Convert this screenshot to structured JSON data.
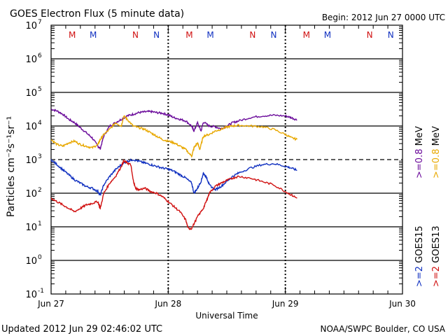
{
  "chart_data": {
    "type": "line",
    "title": "GOES Electron Flux (5 minute data)",
    "begin_label": "Begin: 2012 Jun 27 0000 UTC",
    "ylabel": "Particles cm⁻²s⁻¹sr⁻¹",
    "xlabel": "Universal Time",
    "updated": "Updated 2012 Jun 29 02:46:02 UTC",
    "source": "NOAA/SWPC Boulder, CO USA",
    "ylim_log10": [
      -1,
      7
    ],
    "y_ticks": [
      {
        "exp": 7,
        "label": "10",
        "sup": "7"
      },
      {
        "exp": 6,
        "label": "10",
        "sup": "6"
      },
      {
        "exp": 5,
        "label": "10",
        "sup": "5"
      },
      {
        "exp": 4,
        "label": "10",
        "sup": "4"
      },
      {
        "exp": 3,
        "label": "10",
        "sup": "3"
      },
      {
        "exp": 2,
        "label": "10",
        "sup": "2"
      },
      {
        "exp": 1,
        "label": "10",
        "sup": "1"
      },
      {
        "exp": 0,
        "label": "10",
        "sup": "0"
      },
      {
        "exp": -1,
        "label": "10",
        "sup": "-1"
      }
    ],
    "xlim_days": [
      0,
      3
    ],
    "x_ticks": [
      {
        "day": 0,
        "label": "Jun 27"
      },
      {
        "day": 1,
        "label": "Jun 28"
      },
      {
        "day": 2,
        "label": "Jun 29"
      },
      {
        "day": 3,
        "label": "Jun 30"
      }
    ],
    "threshold_log10": 3,
    "markers": [
      {
        "day": 0.18,
        "label": "M",
        "color": "#d01010"
      },
      {
        "day": 0.36,
        "label": "M",
        "color": "#1030c0"
      },
      {
        "day": 0.72,
        "label": "N",
        "color": "#d01010"
      },
      {
        "day": 0.9,
        "label": "N",
        "color": "#1030c0"
      },
      {
        "day": 1.18,
        "label": "M",
        "color": "#d01010"
      },
      {
        "day": 1.36,
        "label": "M",
        "color": "#1030c0"
      },
      {
        "day": 1.72,
        "label": "N",
        "color": "#d01010"
      },
      {
        "day": 1.9,
        "label": "N",
        "color": "#1030c0"
      },
      {
        "day": 2.18,
        "label": "M",
        "color": "#d01010"
      },
      {
        "day": 2.36,
        "label": "M",
        "color": "#1030c0"
      },
      {
        "day": 2.72,
        "label": "N",
        "color": "#d01010"
      },
      {
        "day": 2.9,
        "label": "N",
        "color": "#1030c0"
      }
    ],
    "legend_right": [
      {
        "parts": [
          {
            "text": ">=0.8",
            "color": "#6a0a9a"
          },
          {
            "text": " MeV",
            "color": "#000000"
          }
        ]
      },
      {
        "parts": [
          {
            "text": ">=0.8",
            "color": "#e8a800"
          },
          {
            "text": " MeV",
            "color": "#000000"
          }
        ]
      }
    ],
    "legend_right_low": [
      {
        "parts": [
          {
            "text": ">=2",
            "color": "#1030c0"
          },
          {
            "text": "  GOES15",
            "color": "#000000"
          }
        ]
      },
      {
        "parts": [
          {
            "text": ">=2",
            "color": "#d01010"
          },
          {
            "text": "  GOES13",
            "color": "#000000"
          }
        ]
      }
    ],
    "series": [
      {
        "name": "GOES15 >=0.8 MeV",
        "color": "#6a0a9a",
        "x": [
          0.0,
          0.05,
          0.1,
          0.15,
          0.2,
          0.25,
          0.3,
          0.35,
          0.4,
          0.42,
          0.45,
          0.5,
          0.55,
          0.6,
          0.65,
          0.7,
          0.75,
          0.8,
          0.85,
          0.9,
          0.95,
          1.0,
          1.05,
          1.1,
          1.15,
          1.2,
          1.22,
          1.25,
          1.28,
          1.3,
          1.35,
          1.4,
          1.45,
          1.5,
          1.55,
          1.6,
          1.7,
          1.8,
          1.9,
          2.0,
          2.05,
          2.1
        ],
        "y": [
          4.5,
          4.45,
          4.35,
          4.2,
          4.1,
          3.95,
          3.8,
          3.65,
          3.4,
          3.33,
          3.7,
          4.0,
          4.1,
          4.2,
          4.3,
          4.35,
          4.4,
          4.42,
          4.43,
          4.4,
          4.38,
          4.33,
          4.25,
          4.2,
          4.15,
          4.0,
          3.85,
          4.1,
          3.85,
          4.12,
          4.0,
          3.98,
          3.92,
          4.0,
          4.1,
          4.15,
          4.25,
          4.3,
          4.32,
          4.3,
          4.25,
          4.18
        ]
      },
      {
        "name": "GOES13 >=0.8 MeV",
        "color": "#e8a800",
        "x": [
          0.0,
          0.05,
          0.1,
          0.15,
          0.2,
          0.25,
          0.3,
          0.35,
          0.4,
          0.42,
          0.45,
          0.5,
          0.55,
          0.6,
          0.62,
          0.65,
          0.7,
          0.75,
          0.8,
          0.85,
          0.9,
          0.95,
          1.0,
          1.05,
          1.1,
          1.15,
          1.2,
          1.22,
          1.25,
          1.27,
          1.3,
          1.35,
          1.4,
          1.45,
          1.5,
          1.55,
          1.6,
          1.7,
          1.8,
          1.9,
          2.0,
          2.05,
          2.1
        ],
        "y": [
          3.6,
          3.45,
          3.4,
          3.5,
          3.55,
          3.45,
          3.4,
          3.35,
          3.45,
          3.6,
          3.75,
          3.9,
          4.1,
          4.0,
          4.3,
          4.2,
          4.0,
          3.95,
          3.9,
          3.8,
          3.7,
          3.6,
          3.55,
          3.5,
          3.4,
          3.3,
          3.1,
          3.35,
          3.5,
          3.3,
          3.7,
          3.75,
          3.85,
          3.9,
          3.97,
          4.0,
          4.02,
          4.0,
          3.98,
          3.9,
          3.75,
          3.65,
          3.6
        ]
      },
      {
        "name": "GOES15 >=2 MeV",
        "color": "#1030c0",
        "x": [
          0.0,
          0.05,
          0.1,
          0.15,
          0.2,
          0.25,
          0.3,
          0.35,
          0.4,
          0.42,
          0.45,
          0.5,
          0.55,
          0.6,
          0.65,
          0.7,
          0.75,
          0.8,
          0.85,
          0.9,
          0.95,
          1.0,
          1.05,
          1.1,
          1.15,
          1.2,
          1.22,
          1.25,
          1.28,
          1.3,
          1.33,
          1.35,
          1.4,
          1.45,
          1.5,
          1.55,
          1.6,
          1.7,
          1.8,
          1.9,
          2.0,
          2.05,
          2.1
        ],
        "y": [
          3.0,
          2.85,
          2.7,
          2.55,
          2.4,
          2.3,
          2.2,
          2.15,
          2.05,
          1.95,
          2.25,
          2.5,
          2.7,
          2.85,
          2.95,
          3.0,
          2.95,
          2.9,
          2.85,
          2.8,
          2.75,
          2.72,
          2.65,
          2.55,
          2.45,
          2.3,
          2.0,
          2.15,
          2.35,
          2.6,
          2.45,
          2.25,
          2.1,
          2.2,
          2.35,
          2.5,
          2.6,
          2.75,
          2.85,
          2.88,
          2.8,
          2.75,
          2.68
        ]
      },
      {
        "name": "GOES13 >=2 MeV",
        "color": "#d01010",
        "x": [
          0.0,
          0.05,
          0.1,
          0.15,
          0.2,
          0.25,
          0.3,
          0.35,
          0.4,
          0.42,
          0.45,
          0.5,
          0.55,
          0.6,
          0.62,
          0.65,
          0.68,
          0.7,
          0.72,
          0.75,
          0.8,
          0.85,
          0.9,
          0.95,
          1.0,
          1.05,
          1.1,
          1.15,
          1.17,
          1.2,
          1.25,
          1.3,
          1.33,
          1.35,
          1.4,
          1.45,
          1.5,
          1.55,
          1.6,
          1.7,
          1.8,
          1.9,
          2.0,
          2.05,
          2.1
        ],
        "y": [
          1.85,
          1.75,
          1.65,
          1.55,
          1.45,
          1.55,
          1.65,
          1.7,
          1.75,
          1.55,
          2.0,
          2.3,
          2.5,
          2.8,
          2.95,
          2.9,
          2.85,
          2.4,
          2.15,
          2.1,
          2.15,
          2.05,
          2.0,
          1.9,
          1.75,
          1.6,
          1.45,
          1.2,
          0.95,
          0.95,
          1.3,
          1.55,
          1.8,
          2.0,
          2.2,
          2.3,
          2.38,
          2.45,
          2.5,
          2.45,
          2.35,
          2.25,
          2.05,
          1.95,
          1.85
        ]
      }
    ]
  }
}
